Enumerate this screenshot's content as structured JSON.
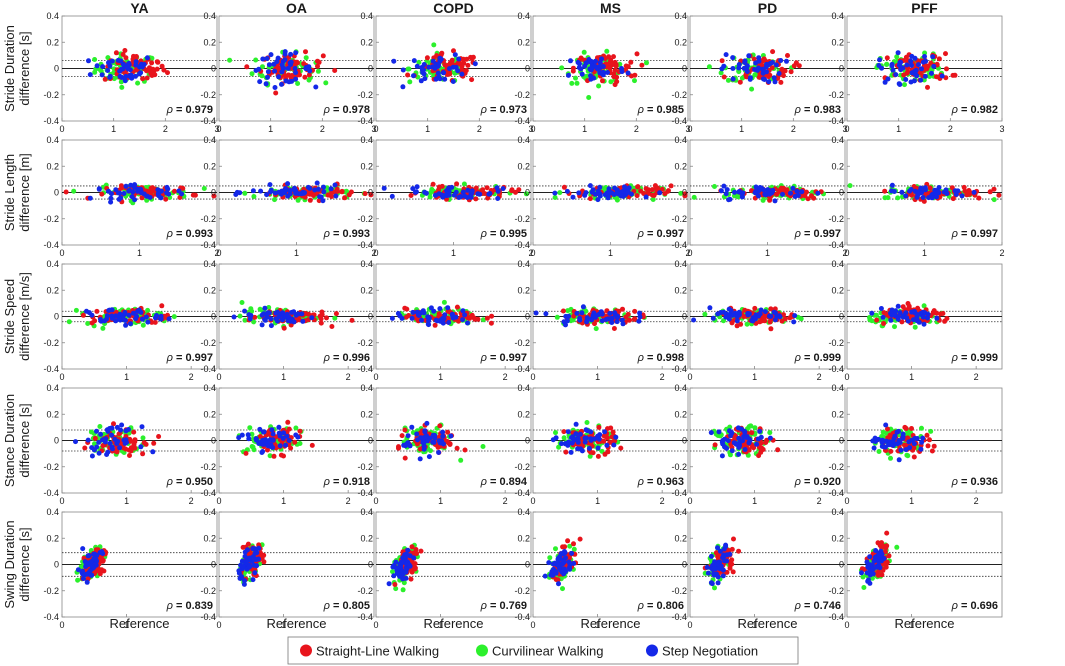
{
  "chart_data": {
    "type": "scatter",
    "columns": [
      "YA",
      "OA",
      "COPD",
      "MS",
      "PD",
      "PFF"
    ],
    "rows": [
      {
        "ylabel": [
          "Stride Duration",
          "difference [s]"
        ],
        "xlim": [
          0,
          3
        ],
        "xticks": [
          "0",
          "1",
          "2",
          "3"
        ],
        "xcenter": 1.25,
        "xspread": 0.3,
        "yspread": 0.055,
        "limit": 0.06,
        "rho": [
          "0.979",
          "0.978",
          "0.973",
          "0.985",
          "0.983",
          "0.982"
        ]
      },
      {
        "ylabel": [
          "Stride Length",
          "difference [m]"
        ],
        "xlim": [
          0,
          2
        ],
        "xticks": [
          "0",
          "1",
          "2"
        ],
        "xcenter": 1.05,
        "xspread": 0.3,
        "yspread": 0.025,
        "limit": 0.05,
        "rho": [
          "0.993",
          "0.993",
          "0.995",
          "0.997",
          "0.997",
          "0.997"
        ]
      },
      {
        "ylabel": [
          "Stride Speed",
          "difference [m/s]"
        ],
        "xlim": [
          0,
          2.4
        ],
        "xticks": [
          "0",
          "1",
          "2"
        ],
        "xcenter": 0.95,
        "xspread": 0.3,
        "yspread": 0.03,
        "limit": 0.04,
        "rho": [
          "0.997",
          "0.996",
          "0.997",
          "0.998",
          "0.999",
          "0.999"
        ]
      },
      {
        "ylabel": [
          "Stance Duration",
          "difference [s]"
        ],
        "xlim": [
          0,
          2.4
        ],
        "xticks": [
          "0",
          "1",
          "2"
        ],
        "xcenter": 0.8,
        "xspread": 0.2,
        "yspread": 0.05,
        "limit": 0.08,
        "rho": [
          "0.950",
          "0.918",
          "0.894",
          "0.963",
          "0.920",
          "0.936"
        ]
      },
      {
        "ylabel": [
          "Swing Duration",
          "difference [s]"
        ],
        "xlim": [
          0,
          2.4
        ],
        "xticks": [
          "0",
          "1"
        ],
        "xcenter": 0.45,
        "xspread": 0.09,
        "yspread": 0.055,
        "limit": 0.09,
        "rho": [
          "0.839",
          "0.805",
          "0.769",
          "0.806",
          "0.746",
          "0.696"
        ]
      }
    ],
    "ylim": [
      -0.4,
      0.4
    ],
    "yticks": [
      "0.4",
      "0.2",
      "0",
      "-0.2",
      "-0.4"
    ],
    "rho_symbol": "ρ",
    "rho_eq": " = ",
    "xlabel": "Reference",
    "legend": [
      {
        "name": "Straight-Line Walking",
        "color": "#e8141c"
      },
      {
        "name": "Curvilinear Walking",
        "color": "#2cf02c"
      },
      {
        "name": "Step Negotiation",
        "color": "#1428e8"
      }
    ],
    "points_per_series": 60
  }
}
